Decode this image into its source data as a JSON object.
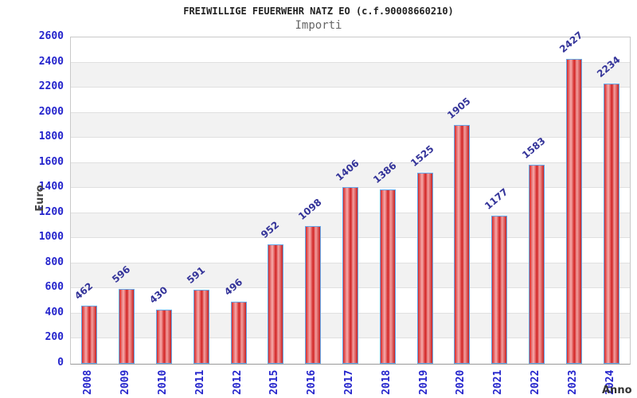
{
  "header": {
    "title": "FREIWILLIGE FEUERWEHR NATZ EO (c.f.90008660210)",
    "subtitle": "Importi"
  },
  "chart_data": {
    "type": "bar",
    "title": "FREIWILLIGE FEUERWEHR NATZ EO (c.f.90008660210)",
    "subtitle": "Importi",
    "xlabel": "Anno",
    "ylabel": "Euro",
    "categories": [
      "2008",
      "2009",
      "2010",
      "2011",
      "2012",
      "2015",
      "2016",
      "2017",
      "2018",
      "2019",
      "2020",
      "2021",
      "2022",
      "2023",
      "2024"
    ],
    "values": [
      462,
      596,
      430,
      591,
      496,
      952,
      1098,
      1406,
      1386,
      1525,
      1905,
      1177,
      1583,
      2427,
      2234
    ],
    "ylim": [
      0,
      2600
    ],
    "yticks": [
      0,
      200,
      400,
      600,
      800,
      1000,
      1200,
      1400,
      1600,
      1800,
      2000,
      2200,
      2400,
      2600
    ],
    "grid": true,
    "legend": "none",
    "band_colors": [
      "#ffffff",
      "#f2f2f2"
    ],
    "gridline_color": "#e0e0e0",
    "tick_label_color": "#2424cc",
    "value_label_color": "#333399",
    "bar_border_color": "#64a8ea",
    "bar_gradient": [
      "#d82828",
      "#f6acac",
      "#d22222",
      "#f2a0a0",
      "#c92020"
    ]
  }
}
